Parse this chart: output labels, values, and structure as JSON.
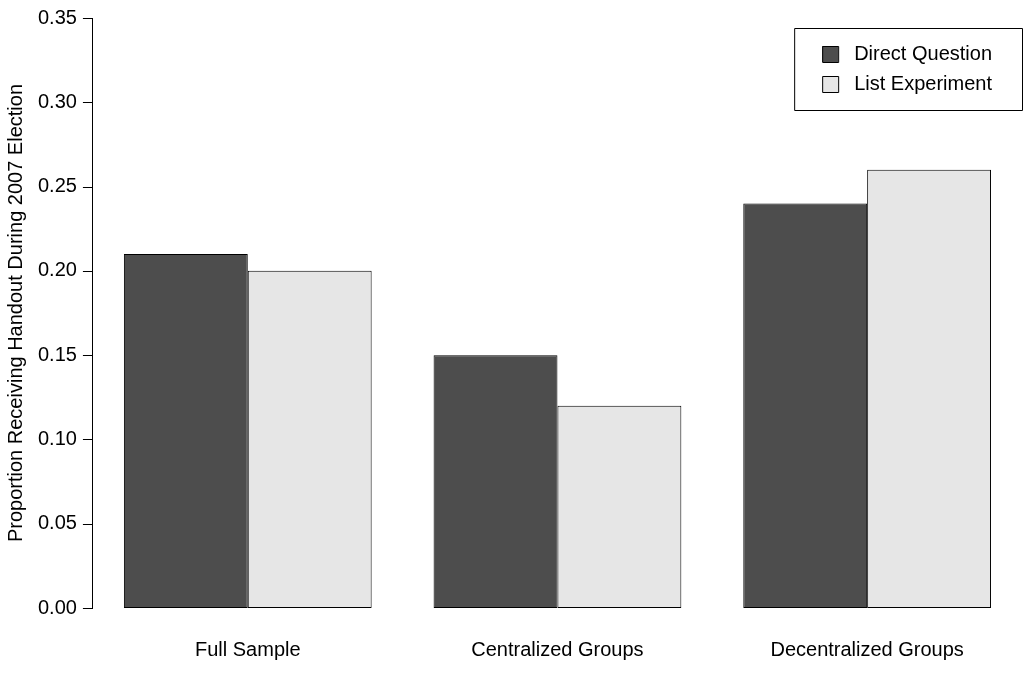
{
  "chart_data": {
    "type": "bar",
    "ylabel": "Proportion Receiving Handout During 2007 Election",
    "categories": [
      "Full Sample",
      "Centralized Groups",
      "Decentralized Groups"
    ],
    "series": [
      {
        "name": "Direct Question",
        "color": "#4d4d4d",
        "values": [
          0.21,
          0.15,
          0.24
        ]
      },
      {
        "name": "List Experiment",
        "color": "#e6e6e6",
        "values": [
          0.2,
          0.12,
          0.26
        ]
      }
    ],
    "ylim": [
      0,
      0.35
    ],
    "yticks": [
      {
        "value": 0,
        "label": "0.00"
      },
      {
        "value": 0.05,
        "label": "0.05"
      },
      {
        "value": 0.1,
        "label": "0.10"
      },
      {
        "value": 0.15,
        "label": "0.15"
      },
      {
        "value": 0.2,
        "label": "0.20"
      },
      {
        "value": 0.25,
        "label": "0.25"
      },
      {
        "value": 0.3,
        "label": "0.30"
      },
      {
        "value": 0.35,
        "label": "0.35"
      }
    ],
    "grid": false,
    "legend": "top right"
  }
}
